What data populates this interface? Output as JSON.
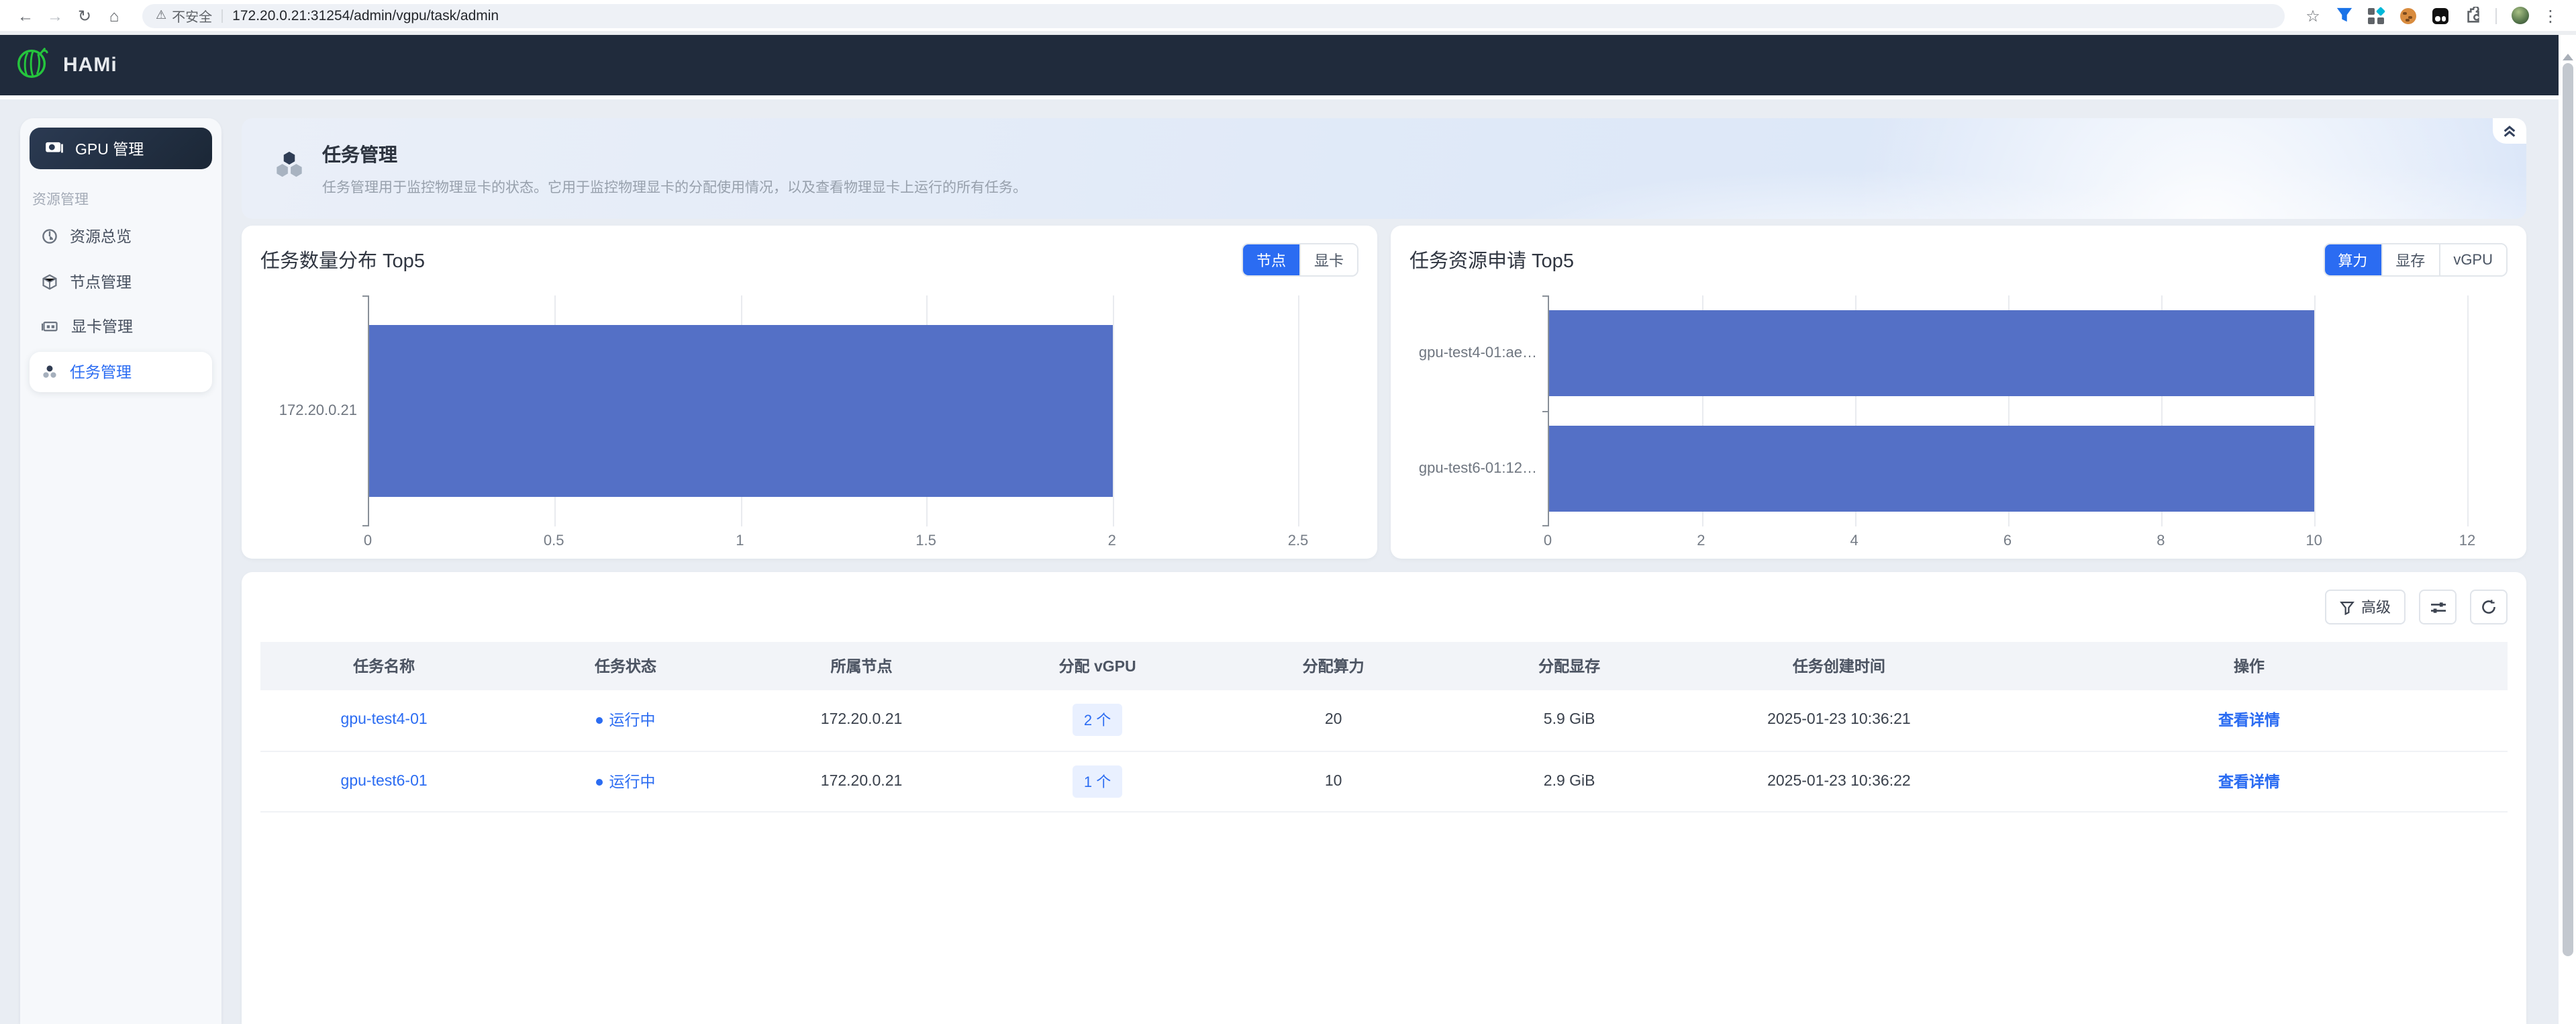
{
  "browser": {
    "security_label": "不安全",
    "url": "172.20.0.21:31254/admin/vgpu/task/admin"
  },
  "navbar": {
    "brand": "HAMi"
  },
  "sidebar": {
    "primary_button": "GPU 管理",
    "section": "资源管理",
    "items": [
      {
        "label": "资源总览",
        "active": false
      },
      {
        "label": "节点管理",
        "active": false
      },
      {
        "label": "显卡管理",
        "active": false
      },
      {
        "label": "任务管理",
        "active": true
      }
    ]
  },
  "header": {
    "title": "任务管理",
    "description": "任务管理用于监控物理显卡的状态。它用于监控物理显卡的分配使用情况，以及查看物理显卡上运行的所有任务。"
  },
  "chart_data": [
    {
      "type": "bar",
      "orientation": "horizontal",
      "title": "任务数量分布 Top5",
      "tabs": [
        "节点",
        "显卡"
      ],
      "active_tab": "节点",
      "categories": [
        "172.20.0.21"
      ],
      "values": [
        2
      ],
      "xlim": [
        0,
        2.5
      ],
      "xticks": [
        0,
        0.5,
        1,
        1.5,
        2,
        2.5
      ],
      "grid": true,
      "bar_color": "#5470c6"
    },
    {
      "type": "bar",
      "orientation": "horizontal",
      "title": "任务资源申请 Top5",
      "tabs": [
        "算力",
        "显存",
        "vGPU"
      ],
      "active_tab": "算力",
      "categories": [
        "gpu-test4-01:ae…",
        "gpu-test6-01:12…"
      ],
      "values": [
        10,
        10
      ],
      "xlim": [
        0,
        12
      ],
      "xticks": [
        0,
        2,
        4,
        6,
        8,
        10,
        12
      ],
      "grid": true,
      "bar_color": "#5470c6"
    }
  ],
  "table": {
    "toolbar": {
      "advanced_label": "高级"
    },
    "columns": [
      "任务名称",
      "任务状态",
      "所属节点",
      "分配 vGPU",
      "分配算力",
      "分配显存",
      "任务创建时间",
      "操作"
    ],
    "rows": [
      {
        "name": "gpu-test4-01",
        "status": "运行中",
        "node": "172.20.0.21",
        "vgpu": "2 个",
        "compute": "20",
        "memory": "5.9 GiB",
        "created": "2025-01-23 10:36:21",
        "action": "查看详情"
      },
      {
        "name": "gpu-test6-01",
        "status": "运行中",
        "node": "172.20.0.21",
        "vgpu": "1 个",
        "compute": "10",
        "memory": "2.9 GiB",
        "created": "2025-01-23 10:36:22",
        "action": "查看详情"
      }
    ]
  },
  "icons": {
    "security-warning": "⚠",
    "back": "←",
    "forward": "→",
    "reload": "↻",
    "home": "⌂",
    "bookmark-star": "☆",
    "menu-dots": "⋮"
  },
  "colors": {
    "accent_blue": "#2b6cf2",
    "bar_blue": "#5470c6",
    "navbar_dark": "#202b3c",
    "page_background": "#e9edf3",
    "hero_background": "#dfe9f8",
    "badge_background": "#e9f0ff",
    "brand_green": "#25c53d"
  }
}
